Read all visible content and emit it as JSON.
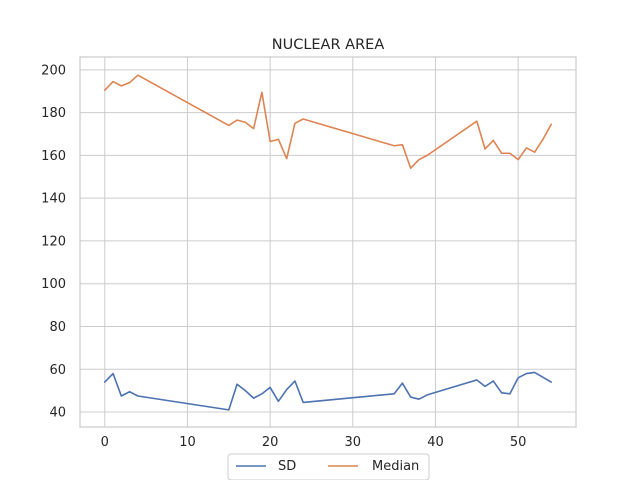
{
  "chart_data": {
    "type": "line",
    "title": "NUCLEAR AREA",
    "xlabel": "",
    "ylabel": "",
    "xlim": [
      -3,
      57
    ],
    "ylim": [
      33,
      206
    ],
    "x_ticks": [
      0,
      10,
      20,
      30,
      40,
      50
    ],
    "y_ticks": [
      40,
      60,
      80,
      100,
      120,
      140,
      160,
      180,
      200
    ],
    "grid": true,
    "legend_position": "bottom-center",
    "series": [
      {
        "name": "SD",
        "color": "#4c72b0",
        "points": [
          [
            0,
            54
          ],
          [
            1,
            58
          ],
          [
            2,
            47.5
          ],
          [
            3,
            49.5
          ],
          [
            4,
            47.5
          ],
          [
            15,
            41
          ],
          [
            16,
            53
          ],
          [
            17,
            50
          ],
          [
            18,
            46.5
          ],
          [
            19,
            48.5
          ],
          [
            20,
            51.5
          ],
          [
            21,
            45
          ],
          [
            22,
            50.5
          ],
          [
            23,
            54.5
          ],
          [
            24,
            44.5
          ],
          [
            35,
            48.5
          ],
          [
            36,
            53.5
          ],
          [
            37,
            47
          ],
          [
            38,
            46
          ],
          [
            39,
            48
          ],
          [
            45,
            55
          ],
          [
            46,
            52
          ],
          [
            47,
            54.5
          ],
          [
            48,
            49
          ],
          [
            49,
            48.5
          ],
          [
            50,
            56
          ],
          [
            51,
            58
          ],
          [
            52,
            58.5
          ],
          [
            54,
            54
          ]
        ]
      },
      {
        "name": "Median",
        "color": "#dd8452",
        "points": [
          [
            0,
            190.5
          ],
          [
            1,
            194.5
          ],
          [
            2,
            192.5
          ],
          [
            3,
            194
          ],
          [
            4,
            197.5
          ],
          [
            15,
            174
          ],
          [
            16,
            176.5
          ],
          [
            17,
            175.5
          ],
          [
            18,
            172.5
          ],
          [
            19,
            189.5
          ],
          [
            20,
            166.5
          ],
          [
            21,
            167.5
          ],
          [
            22,
            158.5
          ],
          [
            23,
            175
          ],
          [
            24,
            177
          ],
          [
            35,
            164.5
          ],
          [
            36,
            165
          ],
          [
            37,
            154
          ],
          [
            38,
            158
          ],
          [
            39,
            160
          ],
          [
            45,
            176
          ],
          [
            46,
            163
          ],
          [
            47,
            167
          ],
          [
            48,
            161
          ],
          [
            49,
            161
          ],
          [
            50,
            158
          ],
          [
            51,
            163.5
          ],
          [
            52,
            161.5
          ],
          [
            53,
            167.5
          ],
          [
            54,
            174.5
          ]
        ]
      }
    ]
  }
}
